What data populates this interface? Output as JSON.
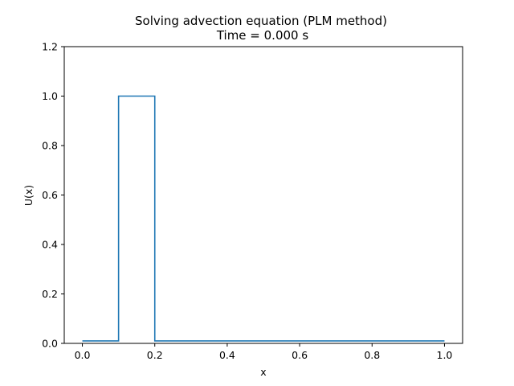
{
  "chart_data": {
    "type": "line",
    "title": "Solving advection equation (PLM method)",
    "subtitle": "Time = 0.000 s",
    "xlabel": "x",
    "ylabel": "U(x)",
    "xlim": [
      -0.05,
      1.05
    ],
    "ylim": [
      0.0,
      1.2
    ],
    "xticks": [
      0.0,
      0.2,
      0.4,
      0.6,
      0.8,
      1.0
    ],
    "yticks": [
      0.0,
      0.2,
      0.4,
      0.6,
      0.8,
      1.0,
      1.2
    ],
    "xtick_labels": [
      "0.0",
      "0.2",
      "0.4",
      "0.6",
      "0.8",
      "1.0"
    ],
    "ytick_labels": [
      "0.0",
      "0.2",
      "0.4",
      "0.6",
      "0.8",
      "1.0",
      "1.2"
    ],
    "grid": false,
    "series": [
      {
        "color": "#1f77b4",
        "x": [
          0.0,
          0.1,
          0.1,
          0.2,
          0.2,
          1.0
        ],
        "y": [
          0.01,
          0.01,
          1.0,
          1.0,
          0.01,
          0.01
        ]
      }
    ]
  }
}
